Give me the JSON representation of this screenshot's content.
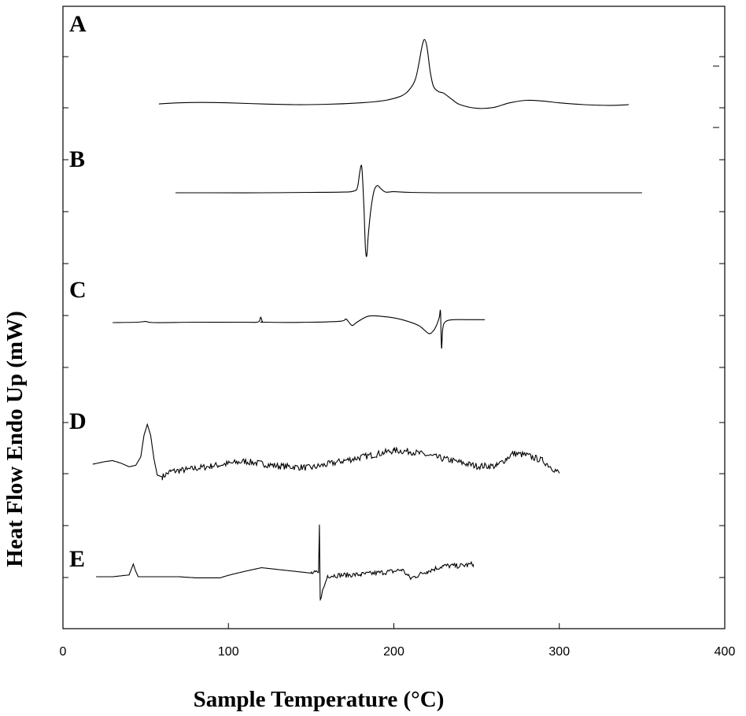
{
  "chart_data": {
    "type": "line",
    "title": "",
    "xlabel": "Sample Temperature (°C)",
    "ylabel": "Heat Flow Endo Up (mW)",
    "xlim": [
      0,
      400
    ],
    "x_ticks": [
      "0",
      "100",
      "200",
      "300",
      "400"
    ],
    "y_tick_labels_shown": false,
    "grid": false,
    "legend": "none",
    "series": [
      {
        "name": "A",
        "x": [
          58,
          70,
          85,
          100,
          120,
          140,
          160,
          180,
          195,
          205,
          210,
          213,
          215,
          217,
          218.5,
          220,
          222,
          224,
          227,
          230,
          235,
          240,
          250,
          260,
          270,
          280,
          290,
          300,
          315,
          330,
          342
        ],
        "y": [
          0.2,
          0.5,
          0.6,
          0.5,
          0.2,
          0.0,
          0.1,
          0.5,
          1.2,
          2.5,
          4.5,
          7.0,
          11.0,
          16.0,
          18.0,
          16.0,
          9.0,
          5.0,
          3.6,
          3.2,
          1.5,
          0.0,
          -1.0,
          -0.8,
          0.5,
          1.2,
          1.0,
          0.5,
          0.0,
          -0.2,
          0.0
        ]
      },
      {
        "name": "B",
        "x": [
          68,
          90,
          120,
          150,
          170,
          176,
          178,
          179.5,
          180.5,
          181.2,
          182,
          182.8,
          183.6,
          184.5,
          186,
          188,
          190,
          192,
          195,
          200,
          210,
          230,
          260,
          300,
          350
        ],
        "y": [
          0.0,
          0.0,
          0.0,
          0.1,
          0.2,
          0.5,
          1.5,
          6.0,
          7.5,
          3.0,
          -5.0,
          -15.0,
          -17.5,
          -12.0,
          -5.0,
          0.5,
          2.0,
          1.2,
          0.2,
          0.3,
          0.1,
          0.0,
          0.0,
          0.0,
          0.0
        ]
      },
      {
        "name": "C",
        "x": [
          30,
          45,
          50,
          55,
          80,
          110,
          118,
          119.5,
          120.5,
          122,
          150,
          168,
          171,
          173,
          175,
          178,
          185,
          195,
          205,
          215,
          221,
          224,
          226,
          227.5,
          228.2,
          228.8,
          229.5,
          231,
          236,
          245,
          255
        ],
        "y": [
          0.0,
          0.1,
          0.3,
          0.0,
          0.1,
          0.1,
          0.2,
          1.5,
          0.3,
          0.1,
          0.1,
          0.4,
          1.0,
          0.0,
          -0.8,
          0.2,
          1.8,
          1.6,
          0.8,
          -0.8,
          -3.0,
          -2.2,
          -0.5,
          1.5,
          3.0,
          -7.0,
          -2.0,
          0.2,
          0.8,
          0.8,
          0.8
        ]
      },
      {
        "name": "D",
        "x": [
          18,
          25,
          30,
          35,
          40,
          44,
          47,
          49,
          51,
          53,
          55,
          57,
          60,
          65,
          75,
          90,
          110,
          130,
          150,
          170,
          190,
          200,
          210,
          220,
          235,
          250,
          262,
          268,
          272,
          280,
          290,
          300
        ],
        "y": [
          0.0,
          0.7,
          1.0,
          0.3,
          -0.7,
          -0.3,
          2.0,
          8.0,
          11.0,
          8.0,
          1.5,
          -3.0,
          -3.5,
          -2.0,
          -1.5,
          -0.5,
          0.8,
          -0.5,
          -1.0,
          1.0,
          2.8,
          3.8,
          3.5,
          2.5,
          1.0,
          -0.5,
          -0.5,
          1.5,
          3.0,
          2.5,
          1.0,
          -2.5
        ]
      },
      {
        "name": "E",
        "x": [
          20,
          30,
          40,
          42.5,
          44,
          45.5,
          50,
          70,
          80,
          95,
          100,
          110,
          120,
          130,
          140,
          150,
          154.5,
          155,
          155.5,
          160,
          180,
          200,
          205,
          210,
          220,
          230,
          240,
          248
        ],
        "y": [
          0.0,
          0.0,
          0.5,
          3.5,
          1.5,
          0.0,
          0.0,
          0.0,
          -0.3,
          -0.3,
          0.4,
          1.5,
          2.5,
          2.0,
          1.5,
          1.0,
          1.0,
          14.0,
          -6.0,
          0.3,
          0.6,
          1.5,
          2.0,
          -0.5,
          1.5,
          3.0,
          3.0,
          3.5
        ]
      }
    ]
  }
}
